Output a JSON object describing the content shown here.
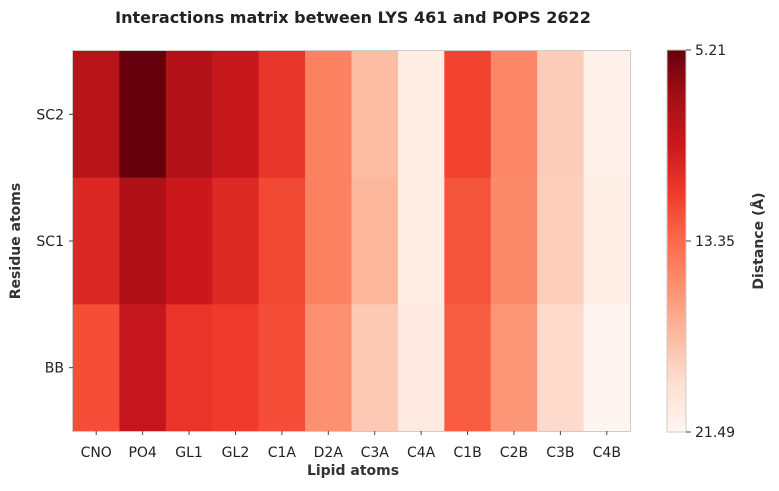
{
  "chart_data": {
    "type": "heatmap",
    "title": "Interactions matrix between LYS 461 and POPS 2622",
    "xlabel": "Lipid atoms",
    "ylabel": "Residue atoms",
    "x_categories": [
      "CNO",
      "PO4",
      "GL1",
      "GL2",
      "C1A",
      "D2A",
      "C3A",
      "C4A",
      "C1B",
      "C2B",
      "C3B",
      "C4B"
    ],
    "y_categories": [
      "SC2",
      "SC1",
      "BB"
    ],
    "values": [
      [
        8.2,
        5.21,
        8.0,
        9.0,
        11.0,
        14.5,
        17.5,
        20.6,
        11.6,
        14.8,
        18.4,
        21.1
      ],
      [
        10.2,
        7.8,
        9.3,
        10.3,
        11.9,
        14.5,
        17.2,
        20.6,
        12.4,
        15.0,
        18.5,
        20.8
      ],
      [
        12.1,
        8.9,
        10.9,
        11.3,
        12.1,
        15.3,
        18.2,
        20.4,
        12.8,
        15.6,
        19.2,
        21.49
      ]
    ],
    "colorscale": "Reds_reversed",
    "colorbar": {
      "label": "Distance ($\\AA$)",
      "label_display": "Distance (Å)",
      "min": 5.21,
      "max": 21.49,
      "ticks": [
        "5.21",
        "13.35",
        "21.49"
      ]
    },
    "grid": false
  }
}
